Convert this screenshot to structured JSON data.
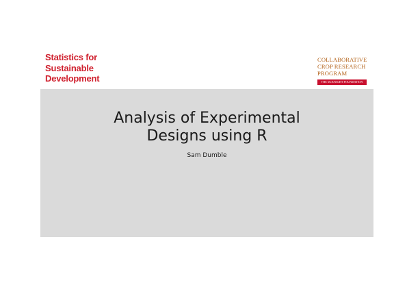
{
  "header": {
    "org_logo": {
      "lines": [
        "Statistics for",
        "Sustainable",
        "Development"
      ],
      "color": "#d0202e"
    },
    "partner_logo": {
      "lines": [
        "COLLABORATIVE",
        "CROP RESEARCH",
        "PROGRAM"
      ],
      "banner": "THE McKNIGHT FOUNDATION",
      "text_color": "#b5651d",
      "banner_bg": "#c8102e",
      "banner_text_color": "#ffffff"
    }
  },
  "slide": {
    "title_lines": [
      "Analysis of Experimental",
      "Designs using R"
    ],
    "author": "Sam Dumble",
    "panel_color": "#dadada"
  }
}
